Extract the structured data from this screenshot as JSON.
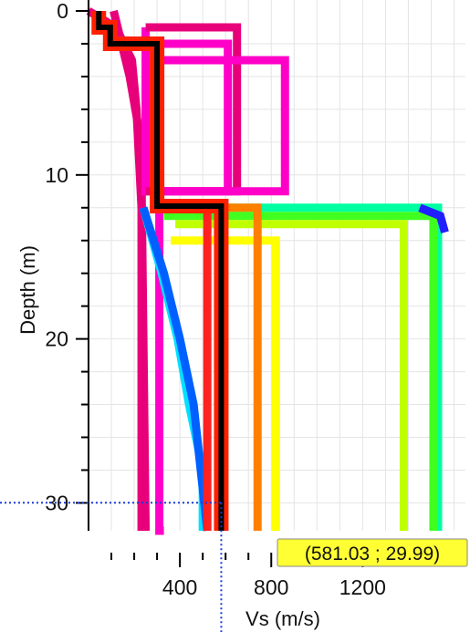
{
  "chart_data": {
    "type": "line",
    "title": "",
    "xlabel": "Vs (m/s)",
    "ylabel": "Depth (m)",
    "xlim": [
      0,
      1650
    ],
    "ylim": [
      0,
      31.7
    ],
    "y_inverted": true,
    "grid": true,
    "x_ticks": [
      400,
      800,
      1200
    ],
    "x_tick_labels": [
      "400",
      "800",
      "1200"
    ],
    "x_minor_ticks": [
      100,
      200,
      300,
      500,
      600,
      700,
      900,
      1000,
      1100,
      1300,
      1400,
      1500,
      1600
    ],
    "y_ticks": [
      0,
      10,
      20,
      30
    ],
    "y_tick_labels": [
      "0",
      "10",
      "20",
      "30"
    ],
    "y_minor_ticks": [
      2,
      4,
      6,
      8,
      12,
      14,
      16,
      18,
      22,
      24,
      26,
      28
    ],
    "ensemble_colors": [
      "#e8007a",
      "#ff00c8",
      "#ff2020",
      "#ff8000",
      "#ffff00",
      "#c0ff00",
      "#40ff20",
      "#00ffa0",
      "#00e0ff",
      "#0060ff",
      "#2020ff"
    ],
    "series": [
      {
        "name": "",
        "color": "#e8007a",
        "x": [
          0,
          120,
          190,
          210,
          232,
          232,
          232
        ],
        "y": [
          0,
          1,
          3,
          6,
          12,
          20,
          31.7
        ]
      },
      {
        "name": "",
        "color": "#e8007a",
        "x": [
          110,
          180,
          230,
          250
        ],
        "y": [
          0,
          4,
          8,
          31.7
        ]
      },
      {
        "name": "",
        "color": "#ff00c8",
        "x": [
          250,
          250,
          310,
          310,
          330,
          330
        ],
        "y": [
          1,
          11,
          11,
          31.7,
          31.7,
          31.7
        ]
      },
      {
        "name": "",
        "color": "#e8007a",
        "x": [
          250,
          650,
          650,
          250
        ],
        "y": [
          1,
          1,
          11,
          11
        ]
      },
      {
        "name": "",
        "color": "#ff00c8",
        "x": [
          280,
          610,
          610,
          280
        ],
        "y": [
          2,
          2,
          11,
          11
        ]
      },
      {
        "name": "",
        "color": "#ff00c8",
        "x": [
          300,
          860,
          860,
          300
        ],
        "y": [
          3,
          3,
          11,
          11
        ]
      },
      {
        "name": "",
        "color": "#00e0ff",
        "x": [
          240,
          320,
          390,
          440,
          500,
          500
        ],
        "y": [
          12,
          16,
          20,
          24,
          28,
          31.7
        ]
      },
      {
        "name": "",
        "color": "#0060ff",
        "x": [
          240,
          330,
          400,
          460,
          520
        ],
        "y": [
          12,
          16,
          20,
          24,
          31.7
        ]
      },
      {
        "name": "",
        "color": "#00ffa0",
        "x": [
          270,
          1530,
          1530
        ],
        "y": [
          12,
          12,
          31.7
        ]
      },
      {
        "name": "",
        "color": "#40ff20",
        "x": [
          330,
          1510,
          1510
        ],
        "y": [
          12.5,
          12.5,
          31.7
        ]
      },
      {
        "name": "",
        "color": "#c0ff00",
        "x": [
          380,
          1380,
          1380
        ],
        "y": [
          13,
          13,
          31.7
        ]
      },
      {
        "name": "",
        "color": "#ffff00",
        "x": [
          360,
          820,
          820
        ],
        "y": [
          14,
          14,
          31.7
        ]
      },
      {
        "name": "",
        "color": "#ff8000",
        "x": [
          280,
          740,
          740
        ],
        "y": [
          12,
          12,
          31.7
        ]
      },
      {
        "name": "",
        "color": "#ff2020",
        "x": [
          290,
          520,
          520
        ],
        "y": [
          12,
          12,
          31.7
        ]
      },
      {
        "name": "",
        "color": "#2020ff",
        "x": [
          1450,
          1540,
          1560
        ],
        "y": [
          12,
          12.5,
          13.5
        ]
      }
    ],
    "highlight_profile": {
      "color": "#000000",
      "x": [
        45,
        45,
        95,
        95,
        300,
        300,
        581,
        581
      ],
      "y": [
        0,
        1,
        1,
        2,
        2,
        11.9,
        11.9,
        31.7
      ]
    },
    "crosshair": {
      "x": 581.03,
      "y": 29.99
    },
    "readout": {
      "text": "(581.03 ; 29.99)",
      "background": "#ffff33"
    }
  }
}
